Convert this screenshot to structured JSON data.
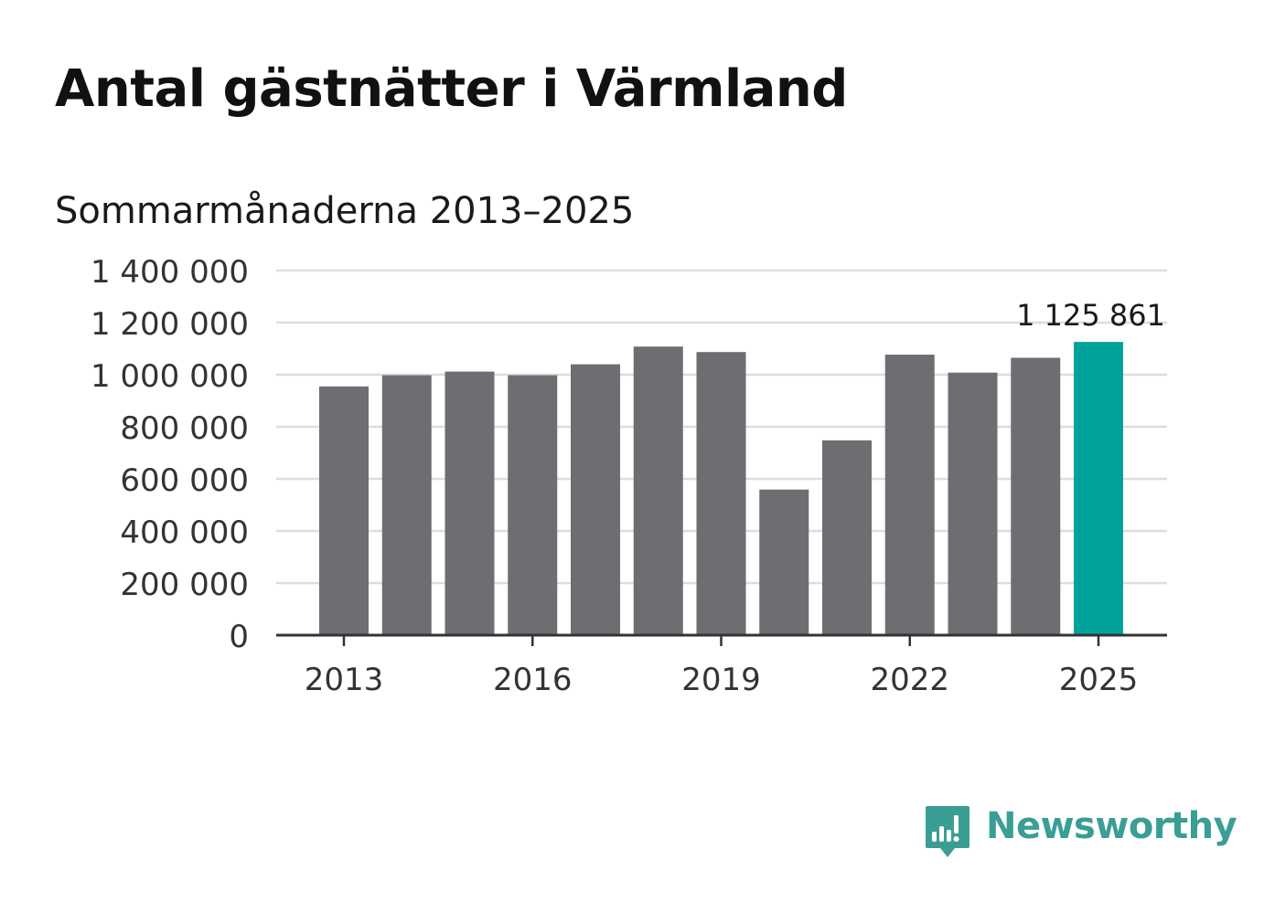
{
  "chart_data": {
    "type": "bar",
    "title": "Antal gästnätter i Värmland",
    "subtitle": "Sommarmånaderna 2013–2025",
    "xlabel": "",
    "ylabel": "",
    "categories": [
      "2013",
      "2014",
      "2015",
      "2016",
      "2017",
      "2018",
      "2019",
      "2020",
      "2021",
      "2022",
      "2023",
      "2024",
      "2025"
    ],
    "x_tick_labels": [
      "2013",
      "2016",
      "2019",
      "2022",
      "2025"
    ],
    "values": [
      955000,
      998000,
      1012000,
      998000,
      1040000,
      1108000,
      1087000,
      559000,
      748000,
      1077000,
      1008000,
      1065000,
      1125861
    ],
    "ylim": [
      0,
      1400000
    ],
    "y_ticks": [
      0,
      200000,
      400000,
      600000,
      800000,
      1000000,
      1200000,
      1400000
    ],
    "y_tick_labels": [
      "0",
      "200 000",
      "400 000",
      "600 000",
      "800 000",
      "1 000 000",
      "1 200 000",
      "1 400 000"
    ],
    "highlight_index": 12,
    "highlight_label": "1 125 861",
    "grid": true,
    "legend": "none",
    "colors": {
      "bar": "#6e6d72",
      "highlight": "#00a39a",
      "grid": "#dddddd",
      "axis": "#333333"
    }
  },
  "brand": {
    "name": "Newsworthy",
    "icon": "newsworthy-logo-icon",
    "color": "#3a9e95"
  }
}
